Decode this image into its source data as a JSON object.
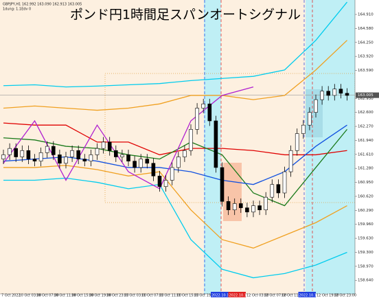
{
  "chart_data": {
    "type": "candlestick",
    "title": "ポンド円1時間足スパンオートシグナル",
    "header": "GBPJPY,H1  162.992 163.090 162.913 163.005",
    "subheader": "1dung: 1.1Edv 0",
    "ylim": [
      158.32,
      165.25
    ],
    "yticks": [
      {
        "value": 164.91,
        "label": "164.910"
      },
      {
        "value": 164.58,
        "label": "164.580"
      },
      {
        "value": 164.25,
        "label": "164.250"
      },
      {
        "value": 163.92,
        "label": "163.920"
      },
      {
        "value": 163.59,
        "label": "163.590"
      },
      {
        "value": 162.93,
        "label": "162.930"
      },
      {
        "value": 162.6,
        "label": "162.600"
      },
      {
        "value": 162.27,
        "label": "162.270"
      },
      {
        "value": 161.94,
        "label": "161.940"
      },
      {
        "value": 161.61,
        "label": "161.610"
      },
      {
        "value": 161.28,
        "label": "161.280"
      },
      {
        "value": 160.95,
        "label": "160.950"
      },
      {
        "value": 160.62,
        "label": "160.620"
      },
      {
        "value": 160.29,
        "label": "160.290"
      },
      {
        "value": 159.96,
        "label": "159.960"
      },
      {
        "value": 159.63,
        "label": "159.630"
      },
      {
        "value": 159.3,
        "label": "159.300"
      },
      {
        "value": 158.97,
        "label": "158.970"
      },
      {
        "value": 158.64,
        "label": "158.640"
      }
    ],
    "current_price": {
      "value": 163.005,
      "label": "163.005"
    },
    "x_labels": [
      "7 Oct 2022",
      "10 Oct 03:00",
      "10 Oct 07:00",
      "10 Oct 11:00",
      "10 Oct 15:00",
      "10 Oct 19:00",
      "10 Oct 23:00",
      "11 Oct 03:00",
      "11 Oct 07:00",
      "11 Oct 11:00",
      "11 Oct 15:00",
      "11 Oct 19:00",
      "2022.10.11 20:00",
      "2022.10.11 22:00",
      "12 Oct 03:00",
      "12 Oct 07:00",
      "12 Oct 11:00",
      "2022.10.12 17:00",
      "12 Oct 19:00",
      "12 Oct 23:00"
    ],
    "candles": [
      [
        161.5,
        161.72,
        161.38,
        161.6
      ],
      [
        161.6,
        161.87,
        161.48,
        161.75
      ],
      [
        161.75,
        161.87,
        161.43,
        161.55
      ],
      [
        161.55,
        161.82,
        161.43,
        161.7
      ],
      [
        161.7,
        161.82,
        161.38,
        161.5
      ],
      [
        161.5,
        161.62,
        161.33,
        161.45
      ],
      [
        161.45,
        161.77,
        161.33,
        161.65
      ],
      [
        161.65,
        161.92,
        161.53,
        161.8
      ],
      [
        161.8,
        161.92,
        161.48,
        161.6
      ],
      [
        161.6,
        161.72,
        161.28,
        161.4
      ],
      [
        161.4,
        161.67,
        161.28,
        161.55
      ],
      [
        161.55,
        161.82,
        161.43,
        161.7
      ],
      [
        161.7,
        161.82,
        161.38,
        161.5
      ],
      [
        161.5,
        161.62,
        161.33,
        161.45
      ],
      [
        161.45,
        161.72,
        161.33,
        161.6
      ],
      [
        161.6,
        161.87,
        161.48,
        161.75
      ],
      [
        161.75,
        162.02,
        161.63,
        161.9
      ],
      [
        161.9,
        162.02,
        161.58,
        161.7
      ],
      [
        161.7,
        161.82,
        161.43,
        161.55
      ],
      [
        161.55,
        161.72,
        161.43,
        161.6
      ],
      [
        161.6,
        161.72,
        161.33,
        161.45
      ],
      [
        161.45,
        161.57,
        161.18,
        161.3
      ],
      [
        161.3,
        161.62,
        161.18,
        161.5
      ],
      [
        161.5,
        161.62,
        161.28,
        161.4
      ],
      [
        161.4,
        161.52,
        160.98,
        161.1
      ],
      [
        161.1,
        161.22,
        160.73,
        160.85
      ],
      [
        160.85,
        161.12,
        160.73,
        161.0
      ],
      [
        161.0,
        161.42,
        160.88,
        161.3
      ],
      [
        161.3,
        161.67,
        161.18,
        161.55
      ],
      [
        161.55,
        161.82,
        161.43,
        161.7
      ],
      [
        161.7,
        162.32,
        161.58,
        162.2
      ],
      [
        162.2,
        162.82,
        162.08,
        162.7
      ],
      [
        162.7,
        162.92,
        162.58,
        162.8
      ],
      [
        162.8,
        162.92,
        162.28,
        162.4
      ],
      [
        162.4,
        162.52,
        161.18,
        161.3
      ],
      [
        161.3,
        161.42,
        160.38,
        160.5
      ],
      [
        160.5,
        160.62,
        160.18,
        160.3
      ],
      [
        160.3,
        160.57,
        160.18,
        160.45
      ],
      [
        160.45,
        160.57,
        160.23,
        160.35
      ],
      [
        160.35,
        160.47,
        160.13,
        160.25
      ],
      [
        160.25,
        160.52,
        160.13,
        160.4
      ],
      [
        160.4,
        160.52,
        160.18,
        160.3
      ],
      [
        160.3,
        160.72,
        160.18,
        160.6
      ],
      [
        160.6,
        161.02,
        160.48,
        160.9
      ],
      [
        160.9,
        161.02,
        160.58,
        160.7
      ],
      [
        160.7,
        161.32,
        160.58,
        161.2
      ],
      [
        161.2,
        161.82,
        161.08,
        161.7
      ],
      [
        161.7,
        162.22,
        161.58,
        162.1
      ],
      [
        162.1,
        162.42,
        161.98,
        162.3
      ],
      [
        162.3,
        162.72,
        162.18,
        162.6
      ],
      [
        162.6,
        163.02,
        162.48,
        162.9
      ],
      [
        162.9,
        163.22,
        162.78,
        163.1
      ],
      [
        163.1,
        163.22,
        162.88,
        163.0
      ],
      [
        163.0,
        163.27,
        162.88,
        163.15
      ],
      [
        163.15,
        163.27,
        162.93,
        163.05
      ],
      [
        163.05,
        163.17,
        162.88,
        163.0
      ]
    ],
    "x": [
      0,
      5,
      10,
      15,
      20,
      25,
      30,
      35,
      40,
      45,
      50,
      55
    ],
    "series": [
      {
        "color": "#00ccee",
        "values": [
          163.23,
          163.25,
          163.2,
          163.22,
          163.25,
          163.28,
          163.35,
          163.4,
          163.45,
          163.6,
          164.3,
          165.2
        ]
      },
      {
        "color": "#00ccee",
        "values": [
          161.0,
          161.0,
          161.05,
          160.95,
          160.8,
          160.9,
          159.6,
          158.9,
          158.7,
          158.8,
          159.0,
          159.3
        ]
      },
      {
        "color": "#f0a020",
        "values": [
          162.7,
          162.75,
          162.7,
          162.65,
          162.7,
          162.8,
          163.0,
          163.0,
          162.9,
          163.0,
          163.6,
          164.3
        ]
      },
      {
        "color": "#f0a020",
        "values": [
          161.3,
          161.3,
          161.35,
          161.25,
          161.1,
          161.2,
          160.3,
          159.6,
          159.4,
          159.7,
          160.0,
          160.4
        ]
      },
      {
        "color": "#e00000",
        "values": [
          162.35,
          162.3,
          162.3,
          161.9,
          161.9,
          161.6,
          161.75,
          161.75,
          161.7,
          161.6,
          161.6,
          161.7
        ]
      },
      {
        "color": "#1a7a1a",
        "values": [
          162.0,
          161.95,
          161.8,
          161.75,
          161.6,
          161.5,
          161.9,
          161.6,
          160.7,
          160.4,
          161.3,
          162.2
        ]
      },
      {
        "color": "#1050e0",
        "values": [
          161.45,
          161.5,
          161.55,
          161.45,
          161.3,
          161.3,
          161.2,
          161.0,
          160.9,
          161.2,
          161.8,
          162.3
        ]
      },
      {
        "color": "#b020d0",
        "values": [
          161.4,
          162.4,
          161.0,
          162.3,
          161.2,
          160.8,
          162.4,
          163.0,
          163.2,
          null,
          null,
          null
        ]
      }
    ]
  }
}
